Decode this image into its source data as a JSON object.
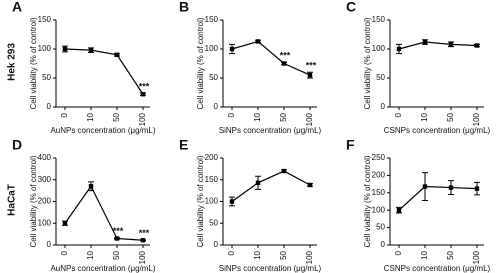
{
  "chart_data": [
    {
      "type": "line",
      "panel": "A",
      "row_label": "Hek 293",
      "y_label": "Cell viability (% of control)",
      "x_label": "AuNPs concentration (μg/mL)",
      "categories": [
        "0",
        "10",
        "50",
        "100"
      ],
      "values": [
        100,
        98,
        90,
        22
      ],
      "errors": [
        5,
        4,
        2,
        2
      ],
      "significance": [
        null,
        null,
        null,
        "***"
      ],
      "ylim": [
        0,
        150
      ],
      "yticks": [
        0,
        50,
        100,
        150
      ],
      "color": "#000000"
    },
    {
      "type": "line",
      "panel": "B",
      "y_label": "Cell viability (% of control)",
      "x_label": "SiNPs concentration (μg/mL)",
      "categories": [
        "0",
        "10",
        "50",
        "100"
      ],
      "values": [
        100,
        113,
        75,
        55
      ],
      "errors": [
        8,
        2,
        2,
        5
      ],
      "significance": [
        null,
        null,
        "***",
        "***"
      ],
      "ylim": [
        0,
        150
      ],
      "yticks": [
        0,
        50,
        100,
        150
      ],
      "color": "#000000"
    },
    {
      "type": "line",
      "panel": "C",
      "y_label": "Cell viability (% of control)",
      "x_label": "CSNPs concentration (μg/mL)",
      "categories": [
        "0",
        "10",
        "50",
        "100"
      ],
      "values": [
        100,
        112,
        108,
        106
      ],
      "errors": [
        8,
        4,
        4,
        2
      ],
      "ylim": [
        0,
        150
      ],
      "yticks": [
        0,
        50,
        100,
        150
      ],
      "color": "#000000"
    },
    {
      "type": "line",
      "panel": "D",
      "row_label": "HaCaT",
      "y_label": "Cell viability (% of control)",
      "x_label": "AuNPs concentration (μg/mL)",
      "categories": [
        "0",
        "10",
        "50",
        "100"
      ],
      "values": [
        100,
        270,
        30,
        22
      ],
      "errors": [
        10,
        20,
        3,
        2
      ],
      "significance": [
        null,
        null,
        "***",
        "***"
      ],
      "ylim": [
        0,
        400
      ],
      "yticks": [
        0,
        100,
        200,
        300,
        400
      ],
      "color": "#000000"
    },
    {
      "type": "line",
      "panel": "E",
      "y_label": "Cell viability (% of control)",
      "x_label": "SiNPs concentration (μg/mL)",
      "categories": [
        "0",
        "10",
        "50",
        "100"
      ],
      "values": [
        100,
        143,
        170,
        138
      ],
      "errors": [
        10,
        15,
        3,
        3
      ],
      "ylim": [
        0,
        200
      ],
      "yticks": [
        0,
        50,
        100,
        150,
        200
      ],
      "color": "#000000"
    },
    {
      "type": "line",
      "panel": "F",
      "y_label": "Cell viability (% of control)",
      "x_label": "CSNPs concentration (μg/mL)",
      "categories": [
        "0",
        "10",
        "50",
        "100"
      ],
      "values": [
        100,
        168,
        165,
        162
      ],
      "errors": [
        8,
        40,
        20,
        18
      ],
      "ylim": [
        0,
        250
      ],
      "yticks": [
        0,
        50,
        100,
        150,
        200,
        250
      ],
      "color": "#000000"
    }
  ]
}
